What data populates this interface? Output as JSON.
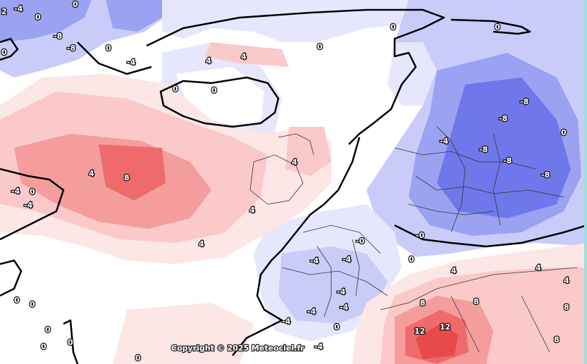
{
  "copyright": "Copyright © 2025 Meteociel.fr",
  "colors": {
    "cold_strong": "#6f78ea",
    "cold_mid": "#9ba2f2",
    "cold_light": "#c9ccf8",
    "cold_faint": "#e6e7fc",
    "neutral": "#ffffff",
    "warm_faint": "#fde6e6",
    "warm_light": "#fbc9c9",
    "warm_mid": "#f59d9d",
    "warm_strong": "#ef6b6b",
    "warm_peak": "#e84a4a",
    "coastline": "#000000",
    "border": "#333333"
  },
  "labels": [
    {
      "t": "2"
    },
    {
      "t": "0"
    },
    {
      "t": "-4"
    },
    {
      "t": "0"
    },
    {
      "t": "-8"
    },
    {
      "t": "0"
    },
    {
      "t": "-8"
    },
    {
      "t": "0"
    },
    {
      "t": "-4"
    },
    {
      "t": "0"
    },
    {
      "t": "4"
    },
    {
      "t": "4"
    },
    {
      "t": "0"
    },
    {
      "t": "0"
    },
    {
      "t": "0"
    },
    {
      "t": "0"
    },
    {
      "t": "-8"
    },
    {
      "t": "-8"
    },
    {
      "t": "-8"
    },
    {
      "t": "-8"
    },
    {
      "t": "-8"
    },
    {
      "t": "-4"
    },
    {
      "t": "0"
    },
    {
      "t": "8"
    },
    {
      "t": "4"
    },
    {
      "t": "-4"
    },
    {
      "t": "0"
    },
    {
      "t": "-4"
    },
    {
      "t": "4"
    },
    {
      "t": "4"
    },
    {
      "t": "4"
    },
    {
      "t": "-0"
    },
    {
      "t": "-0"
    },
    {
      "t": "-4"
    },
    {
      "t": "-4"
    },
    {
      "t": "-4"
    },
    {
      "t": "-4"
    },
    {
      "t": "-4"
    },
    {
      "t": "-4"
    },
    {
      "t": "0"
    },
    {
      "t": "0"
    },
    {
      "t": "8"
    },
    {
      "t": "12"
    },
    {
      "t": "12"
    },
    {
      "t": "8"
    },
    {
      "t": "4"
    },
    {
      "t": "4"
    },
    {
      "t": "4"
    },
    {
      "t": "8"
    },
    {
      "t": "8"
    },
    {
      "t": "0"
    },
    {
      "t": "0"
    },
    {
      "t": "0"
    },
    {
      "t": "0"
    },
    {
      "t": "0"
    },
    {
      "t": "0"
    },
    {
      "t": "-4"
    }
  ]
}
